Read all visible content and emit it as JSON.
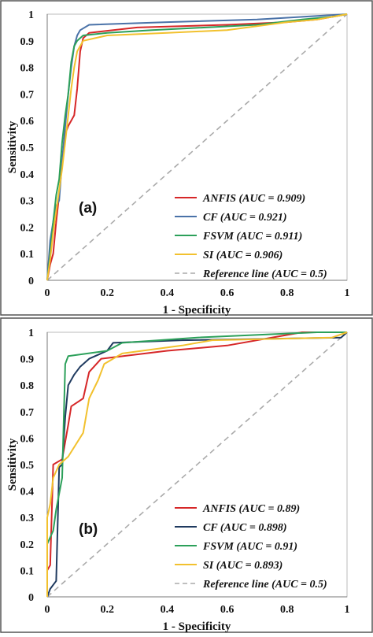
{
  "chart_data": [
    {
      "type": "line",
      "panel_label": "(a)",
      "xlabel": "1 - Specificity",
      "ylabel": "Sensitivity",
      "xlim": [
        0,
        1
      ],
      "ylim": [
        0,
        1
      ],
      "xticks": [
        "0",
        "0.2",
        "0.4",
        "0.6",
        "0.8",
        "1"
      ],
      "yticks": [
        "0",
        "0.1",
        "0.2",
        "0.3",
        "0.4",
        "0.5",
        "0.6",
        "0.7",
        "0.8",
        "0.9",
        "1"
      ],
      "legend_position": "bottom-right",
      "series": [
        {
          "name": "ANFIS (AUC = 0.909)",
          "color": "#d62728",
          "dashed": false,
          "points": [
            [
              0,
              0
            ],
            [
              0.01,
              0.06
            ],
            [
              0.02,
              0.1
            ],
            [
              0.03,
              0.22
            ],
            [
              0.04,
              0.32
            ],
            [
              0.05,
              0.45
            ],
            [
              0.06,
              0.55
            ],
            [
              0.07,
              0.58
            ],
            [
              0.08,
              0.6
            ],
            [
              0.09,
              0.62
            ],
            [
              0.1,
              0.72
            ],
            [
              0.11,
              0.86
            ],
            [
              0.12,
              0.91
            ],
            [
              0.14,
              0.93
            ],
            [
              0.3,
              0.95
            ],
            [
              0.6,
              0.96
            ],
            [
              0.8,
              0.97
            ],
            [
              0.9,
              0.98
            ],
            [
              0.95,
              0.99
            ],
            [
              1,
              1
            ]
          ]
        },
        {
          "name": "CF (AUC = 0.921)",
          "color": "#4a72a8",
          "dashed": false,
          "points": [
            [
              0,
              0
            ],
            [
              0.01,
              0.15
            ],
            [
              0.02,
              0.22
            ],
            [
              0.03,
              0.28
            ],
            [
              0.04,
              0.3
            ],
            [
              0.05,
              0.45
            ],
            [
              0.06,
              0.58
            ],
            [
              0.07,
              0.7
            ],
            [
              0.08,
              0.8
            ],
            [
              0.09,
              0.88
            ],
            [
              0.1,
              0.92
            ],
            [
              0.11,
              0.94
            ],
            [
              0.14,
              0.96
            ],
            [
              0.4,
              0.97
            ],
            [
              0.7,
              0.98
            ],
            [
              0.85,
              0.99
            ],
            [
              1,
              1
            ]
          ]
        },
        {
          "name": "FSVM (AUC = 0.911)",
          "color": "#2ca05a",
          "dashed": false,
          "points": [
            [
              0,
              0
            ],
            [
              0.01,
              0.1
            ],
            [
              0.02,
              0.22
            ],
            [
              0.03,
              0.32
            ],
            [
              0.04,
              0.38
            ],
            [
              0.05,
              0.52
            ],
            [
              0.06,
              0.62
            ],
            [
              0.07,
              0.7
            ],
            [
              0.08,
              0.82
            ],
            [
              0.09,
              0.88
            ],
            [
              0.1,
              0.9
            ],
            [
              0.12,
              0.92
            ],
            [
              0.2,
              0.93
            ],
            [
              0.35,
              0.94
            ],
            [
              0.7,
              0.96
            ],
            [
              0.85,
              0.98
            ],
            [
              0.95,
              0.99
            ],
            [
              1,
              1
            ]
          ]
        },
        {
          "name": "SI (AUC = 0.906)",
          "color": "#f2c12e",
          "dashed": false,
          "points": [
            [
              0,
              0
            ],
            [
              0.01,
              0.08
            ],
            [
              0.02,
              0.18
            ],
            [
              0.03,
              0.26
            ],
            [
              0.04,
              0.34
            ],
            [
              0.05,
              0.42
            ],
            [
              0.06,
              0.52
            ],
            [
              0.07,
              0.62
            ],
            [
              0.08,
              0.72
            ],
            [
              0.09,
              0.8
            ],
            [
              0.1,
              0.86
            ],
            [
              0.12,
              0.9
            ],
            [
              0.2,
              0.92
            ],
            [
              0.4,
              0.93
            ],
            [
              0.6,
              0.94
            ],
            [
              0.8,
              0.97
            ],
            [
              0.9,
              0.98
            ],
            [
              1,
              1
            ]
          ]
        },
        {
          "name": "Reference line (AUC = 0.5)",
          "color": "#aaaaaa",
          "dashed": true,
          "points": [
            [
              0,
              0
            ],
            [
              1,
              1
            ]
          ]
        }
      ]
    },
    {
      "type": "line",
      "panel_label": "(b)",
      "xlabel": "1 - Specificity",
      "ylabel": "Sensitivity",
      "xlim": [
        0,
        1
      ],
      "ylim": [
        0,
        1
      ],
      "xticks": [
        "0",
        "0.2",
        "0.4",
        "0.6",
        "0.8",
        "1"
      ],
      "yticks": [
        "0",
        "0.1",
        "0.2",
        "0.3",
        "0.4",
        "0.5",
        "0.6",
        "0.7",
        "0.8",
        "0.9",
        "1"
      ],
      "legend_position": "bottom-right",
      "series": [
        {
          "name": "ANFIS (AUC = 0.89)",
          "color": "#d62728",
          "dashed": false,
          "points": [
            [
              0,
              0
            ],
            [
              0,
              0.1
            ],
            [
              0.01,
              0.12
            ],
            [
              0.02,
              0.5
            ],
            [
              0.05,
              0.52
            ],
            [
              0.07,
              0.65
            ],
            [
              0.08,
              0.72
            ],
            [
              0.12,
              0.75
            ],
            [
              0.14,
              0.85
            ],
            [
              0.18,
              0.9
            ],
            [
              0.4,
              0.93
            ],
            [
              0.6,
              0.95
            ],
            [
              0.85,
              1
            ],
            [
              1,
              1
            ]
          ]
        },
        {
          "name": "CF (AUC = 0.898)",
          "color": "#1f3a5f",
          "dashed": false,
          "points": [
            [
              0,
              0
            ],
            [
              0.01,
              0.03
            ],
            [
              0.03,
              0.06
            ],
            [
              0.04,
              0.49
            ],
            [
              0.05,
              0.5
            ],
            [
              0.06,
              0.68
            ],
            [
              0.07,
              0.8
            ],
            [
              0.09,
              0.84
            ],
            [
              0.11,
              0.87
            ],
            [
              0.14,
              0.9
            ],
            [
              0.2,
              0.93
            ],
            [
              0.22,
              0.96
            ],
            [
              0.45,
              0.97
            ],
            [
              0.98,
              0.98
            ],
            [
              1,
              1
            ]
          ]
        },
        {
          "name": "FSVM (AUC = 0.91)",
          "color": "#2ca05a",
          "dashed": false,
          "points": [
            [
              0,
              0
            ],
            [
              0,
              0.2
            ],
            [
              0.02,
              0.25
            ],
            [
              0.03,
              0.33
            ],
            [
              0.05,
              0.45
            ],
            [
              0.06,
              0.88
            ],
            [
              0.07,
              0.91
            ],
            [
              0.2,
              0.93
            ],
            [
              0.25,
              0.96
            ],
            [
              0.5,
              0.98
            ],
            [
              0.9,
              1
            ],
            [
              1,
              1
            ]
          ]
        },
        {
          "name": "SI (AUC = 0.893)",
          "color": "#f2c12e",
          "dashed": false,
          "points": [
            [
              0,
              0
            ],
            [
              0,
              0.3
            ],
            [
              0.01,
              0.35
            ],
            [
              0.02,
              0.45
            ],
            [
              0.04,
              0.5
            ],
            [
              0.07,
              0.53
            ],
            [
              0.12,
              0.62
            ],
            [
              0.14,
              0.75
            ],
            [
              0.17,
              0.82
            ],
            [
              0.19,
              0.88
            ],
            [
              0.25,
              0.92
            ],
            [
              0.45,
              0.95
            ],
            [
              0.55,
              0.97
            ],
            [
              0.95,
              0.98
            ],
            [
              1,
              1
            ]
          ]
        },
        {
          "name": "Reference line (AUC = 0.5)",
          "color": "#aaaaaa",
          "dashed": true,
          "points": [
            [
              0,
              0
            ],
            [
              1,
              1
            ]
          ]
        }
      ]
    }
  ]
}
